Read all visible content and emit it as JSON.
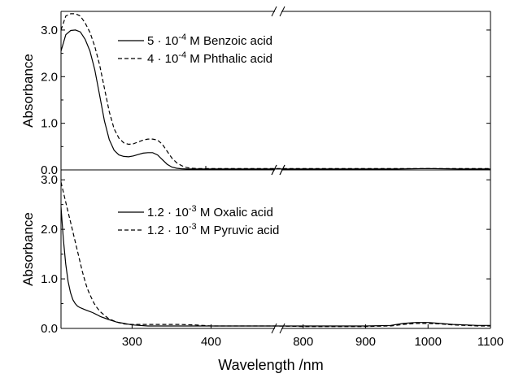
{
  "chart_data": [
    {
      "type": "line",
      "ylabel": "Absorbance",
      "ylim": [
        0.0,
        3.4
      ],
      "yticks": [
        0.0,
        1.0,
        2.0,
        3.0
      ],
      "ytick_labels": [
        "0.0",
        "1.0",
        "2.0",
        "3.0"
      ],
      "x_axis_break": {
        "left_range_nm": [
          210,
          345
        ],
        "right_range_nm": [
          760,
          1100
        ]
      },
      "legend": "top-center",
      "series": [
        {
          "name": "5 · 10⁻⁴ M Benzoic acid",
          "name_parts": {
            "prefix": "5 ",
            "dot": "·",
            "base": " 10",
            "exp": "-4",
            "suffix": " M Benzoic acid"
          },
          "style": "solid",
          "x": [
            210,
            213,
            216,
            219,
            222,
            225,
            228,
            231,
            234,
            237,
            240,
            243,
            246,
            249,
            252,
            255,
            258,
            261,
            264,
            267,
            270,
            273,
            276,
            279,
            282,
            285,
            288,
            291,
            294,
            297,
            300,
            305,
            310,
            320,
            340,
            800,
            850,
            900,
            950,
            1000,
            1050,
            1100
          ],
          "y": [
            2.55,
            2.9,
            2.99,
            3.0,
            2.96,
            2.8,
            2.55,
            2.15,
            1.6,
            1.05,
            0.65,
            0.42,
            0.32,
            0.29,
            0.28,
            0.3,
            0.33,
            0.36,
            0.37,
            0.37,
            0.32,
            0.22,
            0.12,
            0.06,
            0.035,
            0.025,
            0.02,
            0.02,
            0.02,
            0.02,
            0.02,
            0.02,
            0.02,
            0.02,
            0.02,
            0.02,
            0.02,
            0.02,
            0.02,
            0.03,
            0.02,
            0.02
          ]
        },
        {
          "name": "4 · 10⁻⁴ M Phthalic acid",
          "name_parts": {
            "prefix": "4 ",
            "dot": "·",
            "base": " 10",
            "exp": "-4",
            "suffix": " M Phthalic acid"
          },
          "style": "dashed",
          "x": [
            210,
            213,
            216,
            219,
            222,
            225,
            228,
            231,
            234,
            237,
            240,
            243,
            246,
            249,
            252,
            255,
            258,
            261,
            264,
            267,
            270,
            273,
            276,
            279,
            282,
            285,
            288,
            291,
            294,
            297,
            300,
            305,
            310,
            320,
            340,
            800,
            850,
            900,
            950,
            1000,
            1050,
            1100
          ],
          "y": [
            3.0,
            3.3,
            3.35,
            3.35,
            3.3,
            3.15,
            2.95,
            2.65,
            2.25,
            1.75,
            1.25,
            0.88,
            0.68,
            0.58,
            0.55,
            0.56,
            0.6,
            0.64,
            0.66,
            0.66,
            0.64,
            0.55,
            0.4,
            0.25,
            0.15,
            0.09,
            0.05,
            0.035,
            0.03,
            0.03,
            0.03,
            0.03,
            0.03,
            0.03,
            0.03,
            0.03,
            0.03,
            0.03,
            0.03,
            0.03,
            0.03,
            0.03
          ]
        }
      ]
    },
    {
      "type": "line",
      "xlabel": "Wavelength /nm",
      "ylabel": "Absorbance",
      "ylim": [
        0.0,
        3.2
      ],
      "yticks": [
        0.0,
        1.0,
        2.0,
        3.0
      ],
      "ytick_labels": [
        "0.0",
        "1.0",
        "2.0",
        "3.0"
      ],
      "x_axis_break": {
        "left_range_nm": [
          210,
          485
        ],
        "right_range_nm": [
          760,
          1100
        ]
      },
      "xticks_left": [
        300,
        400
      ],
      "xticks_right": [
        800,
        900,
        1000,
        1100
      ],
      "xtick_labels": [
        "300",
        "400",
        "800",
        "900",
        "1000",
        "1100"
      ],
      "legend": "top-center",
      "series": [
        {
          "name": "1.2 · 10⁻³ M Oxalic acid",
          "name_parts": {
            "prefix": "1.2 ",
            "dot": "·",
            "base": " 10",
            "exp": "-3",
            "suffix": " M Oxalic acid"
          },
          "style": "solid",
          "x": [
            210,
            213,
            216,
            219,
            222,
            225,
            228,
            231,
            234,
            237,
            240,
            245,
            250,
            255,
            260,
            270,
            280,
            290,
            300,
            320,
            340,
            360,
            380,
            400,
            440,
            480,
            800,
            850,
            900,
            940,
            960,
            980,
            1000,
            1020,
            1040,
            1060,
            1080,
            1100
          ],
          "y": [
            2.45,
            1.8,
            1.3,
            0.95,
            0.72,
            0.58,
            0.5,
            0.45,
            0.42,
            0.4,
            0.38,
            0.35,
            0.32,
            0.28,
            0.24,
            0.18,
            0.13,
            0.1,
            0.07,
            0.05,
            0.05,
            0.05,
            0.05,
            0.05,
            0.05,
            0.05,
            0.05,
            0.05,
            0.05,
            0.06,
            0.1,
            0.12,
            0.12,
            0.1,
            0.08,
            0.07,
            0.06,
            0.06
          ]
        },
        {
          "name": "1.2 · 10⁻³ M Pyruvic acid",
          "name_parts": {
            "prefix": "1.2 ",
            "dot": "·",
            "base": " 10",
            "exp": "-3",
            "suffix": " M Pyruvic acid"
          },
          "style": "dashed",
          "x": [
            210,
            213,
            216,
            219,
            222,
            225,
            228,
            231,
            234,
            237,
            240,
            243,
            246,
            249,
            252,
            255,
            258,
            261,
            264,
            267,
            270,
            280,
            290,
            300,
            320,
            340,
            360,
            380,
            400,
            440,
            480,
            800,
            850,
            900,
            940,
            960,
            980,
            1000,
            1020,
            1040,
            1060,
            1080,
            1100
          ],
          "y": [
            2.95,
            2.75,
            2.55,
            2.35,
            2.15,
            1.95,
            1.75,
            1.55,
            1.35,
            1.15,
            0.98,
            0.82,
            0.7,
            0.6,
            0.5,
            0.43,
            0.37,
            0.32,
            0.28,
            0.24,
            0.2,
            0.13,
            0.09,
            0.08,
            0.08,
            0.08,
            0.08,
            0.07,
            0.05,
            0.05,
            0.05,
            0.04,
            0.04,
            0.04,
            0.05,
            0.08,
            0.1,
            0.1,
            0.09,
            0.07,
            0.06,
            0.05,
            0.05
          ]
        }
      ]
    }
  ]
}
